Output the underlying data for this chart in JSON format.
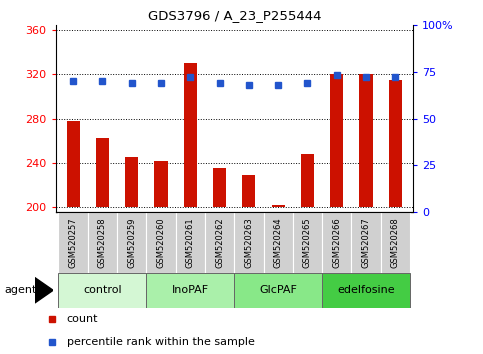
{
  "title": "GDS3796 / A_23_P255444",
  "samples": [
    "GSM520257",
    "GSM520258",
    "GSM520259",
    "GSM520260",
    "GSM520261",
    "GSM520262",
    "GSM520263",
    "GSM520264",
    "GSM520265",
    "GSM520266",
    "GSM520267",
    "GSM520268"
  ],
  "bar_values": [
    278,
    262,
    245,
    242,
    330,
    235,
    229,
    202,
    248,
    320,
    320,
    315
  ],
  "percentile_values": [
    70,
    70,
    69,
    69,
    72,
    69,
    68,
    68,
    69,
    73,
    72,
    72
  ],
  "groups": [
    {
      "label": "control",
      "start": 0,
      "end": 3,
      "color": "#d4f7d4"
    },
    {
      "label": "InoPAF",
      "start": 3,
      "end": 6,
      "color": "#aaf0aa"
    },
    {
      "label": "GlcPAF",
      "start": 6,
      "end": 9,
      "color": "#88e888"
    },
    {
      "label": "edelfosine",
      "start": 9,
      "end": 12,
      "color": "#44cc44"
    }
  ],
  "ylim_left": [
    195,
    365
  ],
  "ylim_right": [
    0,
    100
  ],
  "yticks_left": [
    200,
    240,
    280,
    320,
    360
  ],
  "yticks_right": [
    0,
    25,
    50,
    75,
    100
  ],
  "bar_color": "#cc1100",
  "percentile_color": "#2255cc",
  "bar_width": 0.45,
  "plot_bg_color": "#ffffff",
  "grid_color": "#000000",
  "sample_bg_color": "#d0d0d0",
  "legend_count_label": "count",
  "legend_pct_label": "percentile rank within the sample"
}
